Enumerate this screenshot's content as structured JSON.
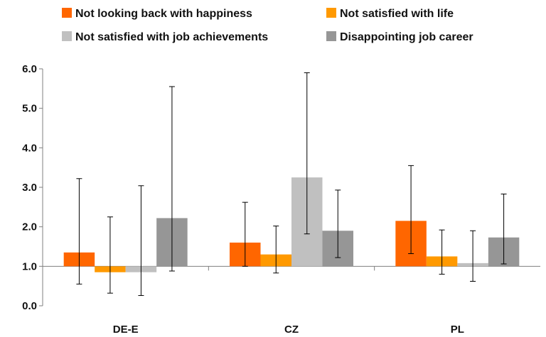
{
  "chart_data": {
    "type": "bar",
    "categories": [
      "DE-E",
      "CZ",
      "PL"
    ],
    "series": [
      {
        "name": "Not looking back with happiness",
        "color": "#FF6600",
        "values": [
          1.35,
          1.6,
          2.15
        ],
        "err_low": [
          0.55,
          1.0,
          1.32
        ],
        "err_high": [
          3.22,
          2.62,
          3.55
        ]
      },
      {
        "name": "Not satisfied with life",
        "color": "#FF9900",
        "values": [
          0.85,
          1.3,
          1.25
        ],
        "err_low": [
          0.32,
          0.83,
          0.8
        ],
        "err_high": [
          2.25,
          2.02,
          1.92
        ]
      },
      {
        "name": "Not satisfied with job achievements",
        "color": "#C0C0C0",
        "values": [
          0.85,
          3.25,
          1.08
        ],
        "err_low": [
          0.26,
          1.82,
          0.62
        ],
        "err_high": [
          3.04,
          5.9,
          1.9
        ]
      },
      {
        "name": "Disappointing job career",
        "color": "#969696",
        "values": [
          2.22,
          1.9,
          1.73
        ],
        "err_low": [
          0.88,
          1.22,
          1.06
        ],
        "err_high": [
          5.55,
          2.93,
          2.83
        ]
      }
    ],
    "baseline": 1.0,
    "ylim": [
      0,
      6
    ],
    "yticks": [
      "0.0",
      "1.0",
      "2.0",
      "3.0",
      "4.0",
      "5.0",
      "6.0"
    ],
    "title": "",
    "xlabel": "",
    "ylabel": "",
    "grid": false,
    "legend_position": "top"
  }
}
